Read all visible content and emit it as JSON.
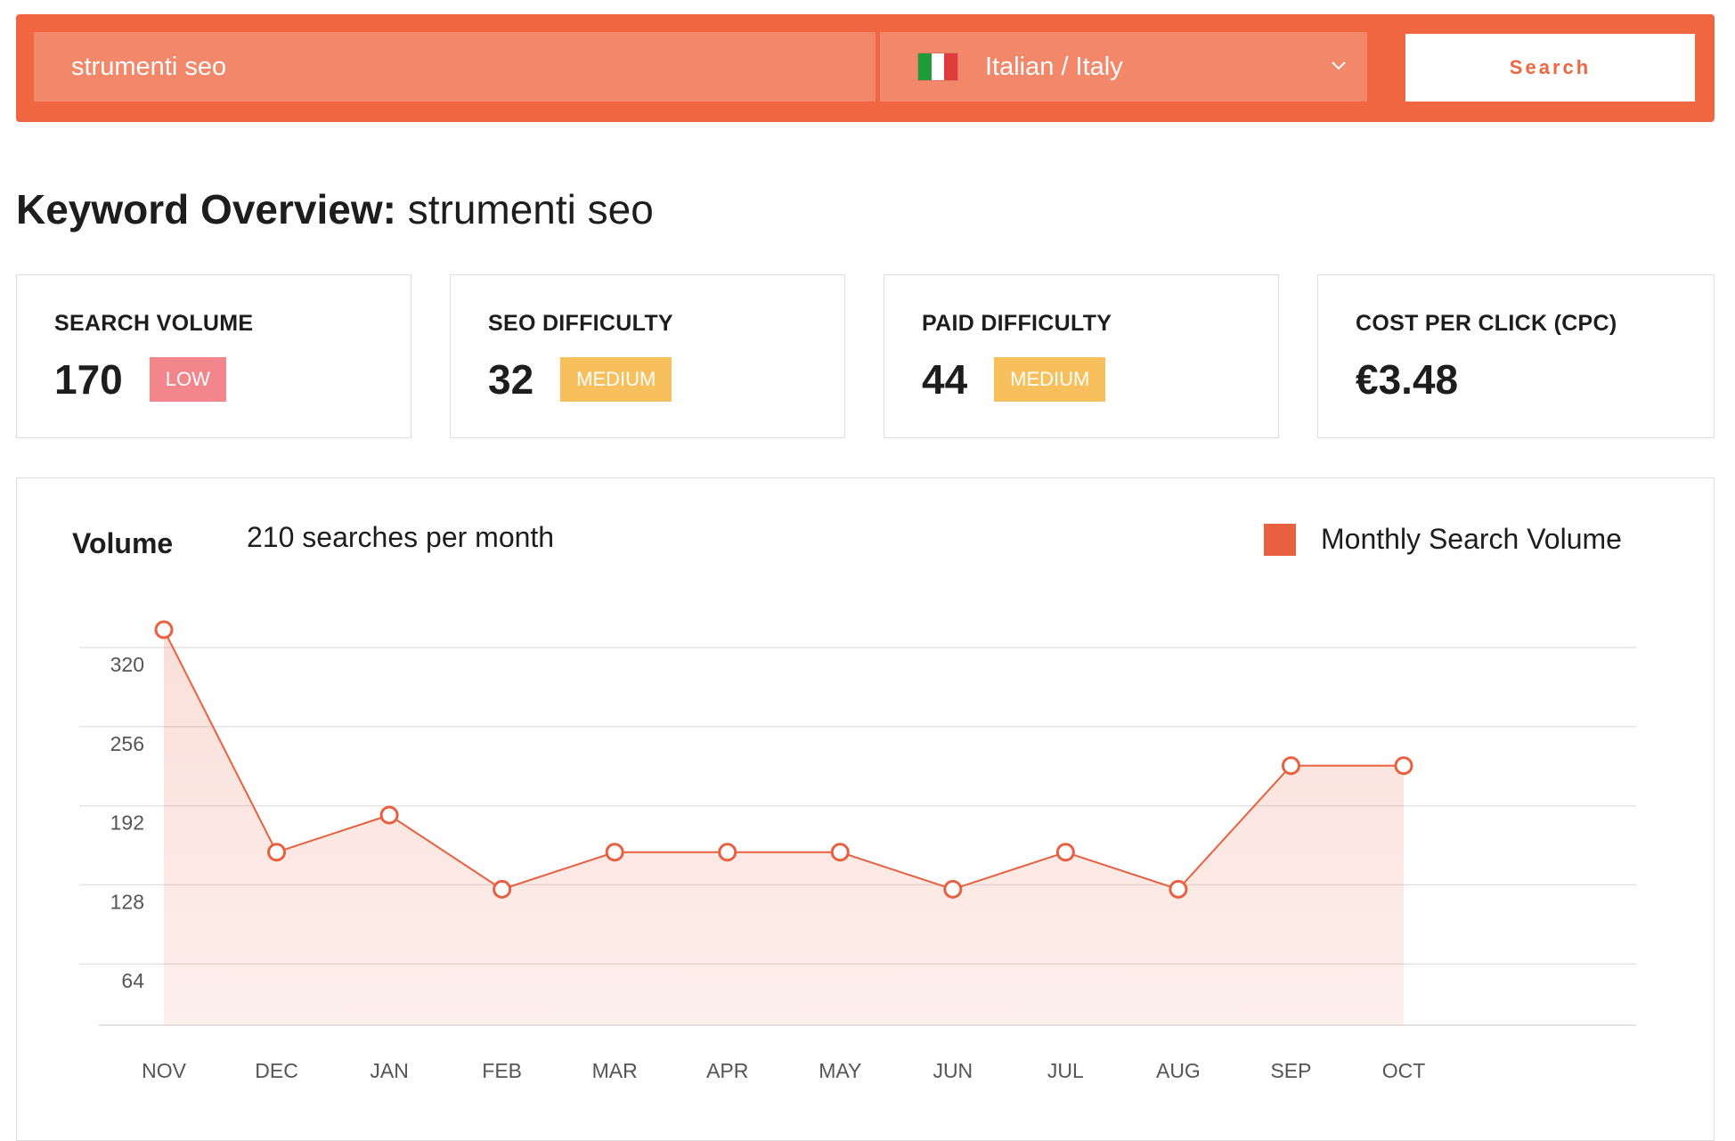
{
  "search": {
    "query": "strumenti seo",
    "language_label": "Italian / Italy",
    "flag_colors": [
      "#1f9b3a",
      "#ffffff",
      "#e03a3a"
    ],
    "button_label": "Search"
  },
  "header": {
    "title_bold": "Keyword Overview:",
    "title_keyword": "strumenti seo"
  },
  "metrics": [
    {
      "label": "SEARCH VOLUME",
      "value": "170",
      "badge": "LOW",
      "badge_color": "#f3868d"
    },
    {
      "label": "SEO DIFFICULTY",
      "value": "32",
      "badge": "MEDIUM",
      "badge_color": "#f7c05c"
    },
    {
      "label": "PAID DIFFICULTY",
      "value": "44",
      "badge": "MEDIUM",
      "badge_color": "#f7c05c"
    },
    {
      "label": "COST PER CLICK (CPC)",
      "value": "€3.48"
    }
  ],
  "chart": {
    "title": "Volume",
    "subtitle": "210 searches per month",
    "legend_label": "Monthly Search Volume",
    "accent_color": "#e8603f"
  },
  "chart_data": {
    "type": "area",
    "categories": [
      "NOV",
      "DEC",
      "JAN",
      "FEB",
      "MAR",
      "APR",
      "MAY",
      "JUN",
      "JUL",
      "AUG",
      "SEP",
      "OCT"
    ],
    "series": [
      {
        "name": "Monthly Search Volume",
        "values": [
          320,
          140,
          170,
          110,
          140,
          140,
          140,
          110,
          140,
          110,
          210,
          210
        ]
      }
    ],
    "yticks": [
      64,
      128,
      192,
      256,
      320
    ],
    "ylim": [
      0,
      320
    ],
    "grid": true,
    "legend": "top-right"
  }
}
